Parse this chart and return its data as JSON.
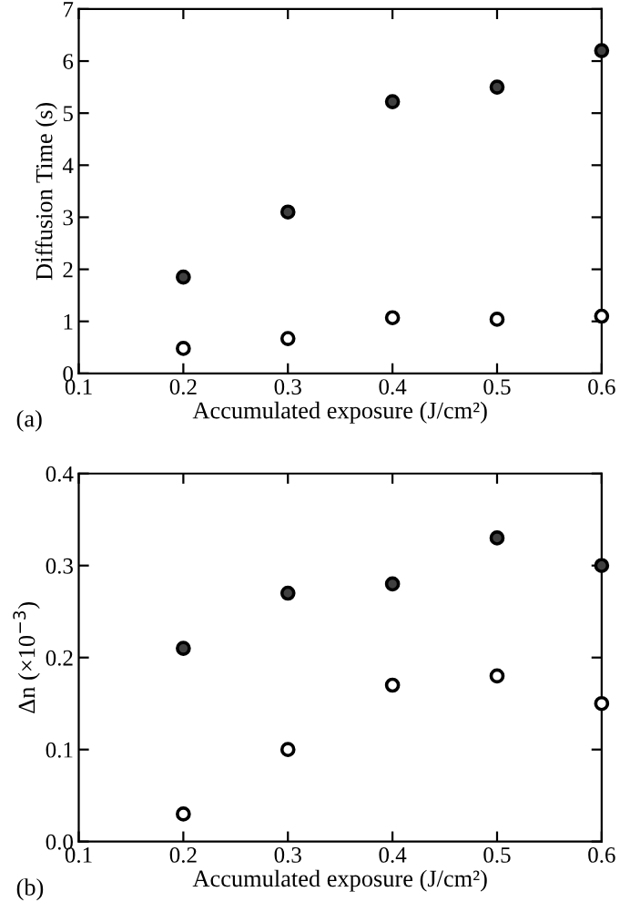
{
  "chart_data": [
    {
      "type": "scatter",
      "xlabel": "Accumulated exposure (J/cm²)",
      "ylabel": "Diffusion Time (s)",
      "annotations": [
        "(a)"
      ],
      "x": [
        0.2,
        0.3,
        0.4,
        0.5,
        0.6
      ],
      "series": [
        {
          "color": "#404040",
          "values": [
            1.85,
            3.1,
            5.22,
            5.5,
            6.2
          ]
        },
        {
          "color": "#ffffff",
          "values": [
            0.48,
            0.67,
            1.07,
            1.04,
            1.1
          ]
        }
      ],
      "xlim": [
        0.1,
        0.6
      ],
      "xticks": [
        0.1,
        0.2,
        0.3,
        0.4,
        0.5,
        0.6
      ],
      "ylim": [
        0,
        7
      ],
      "yticks": [
        0,
        1,
        2,
        3,
        4,
        5,
        6,
        7
      ],
      "marker": "circle"
    },
    {
      "type": "scatter",
      "xlabel": "Accumulated exposure (J/cm²)",
      "ylabel": "Δn (×10$^{−3}$)",
      "annotations": [
        "(b)"
      ],
      "x": [
        0.2,
        0.3,
        0.4,
        0.5,
        0.6
      ],
      "series": [
        {
          "color": "#404040",
          "values": [
            0.21,
            0.27,
            0.28,
            0.33,
            0.3
          ]
        },
        {
          "color": "#ffffff",
          "values": [
            0.03,
            0.1,
            0.17,
            0.18,
            0.15
          ]
        }
      ],
      "xlim": [
        0.1,
        0.6
      ],
      "xticks": [
        0.1,
        0.2,
        0.3,
        0.4,
        0.5,
        0.6
      ],
      "ylim": [
        0,
        0.4
      ],
      "yticks": [
        {
          "value": 0,
          "label": "0.0"
        },
        0.1,
        0.2,
        0.3,
        0.4
      ],
      "marker": "circle"
    }
  ]
}
